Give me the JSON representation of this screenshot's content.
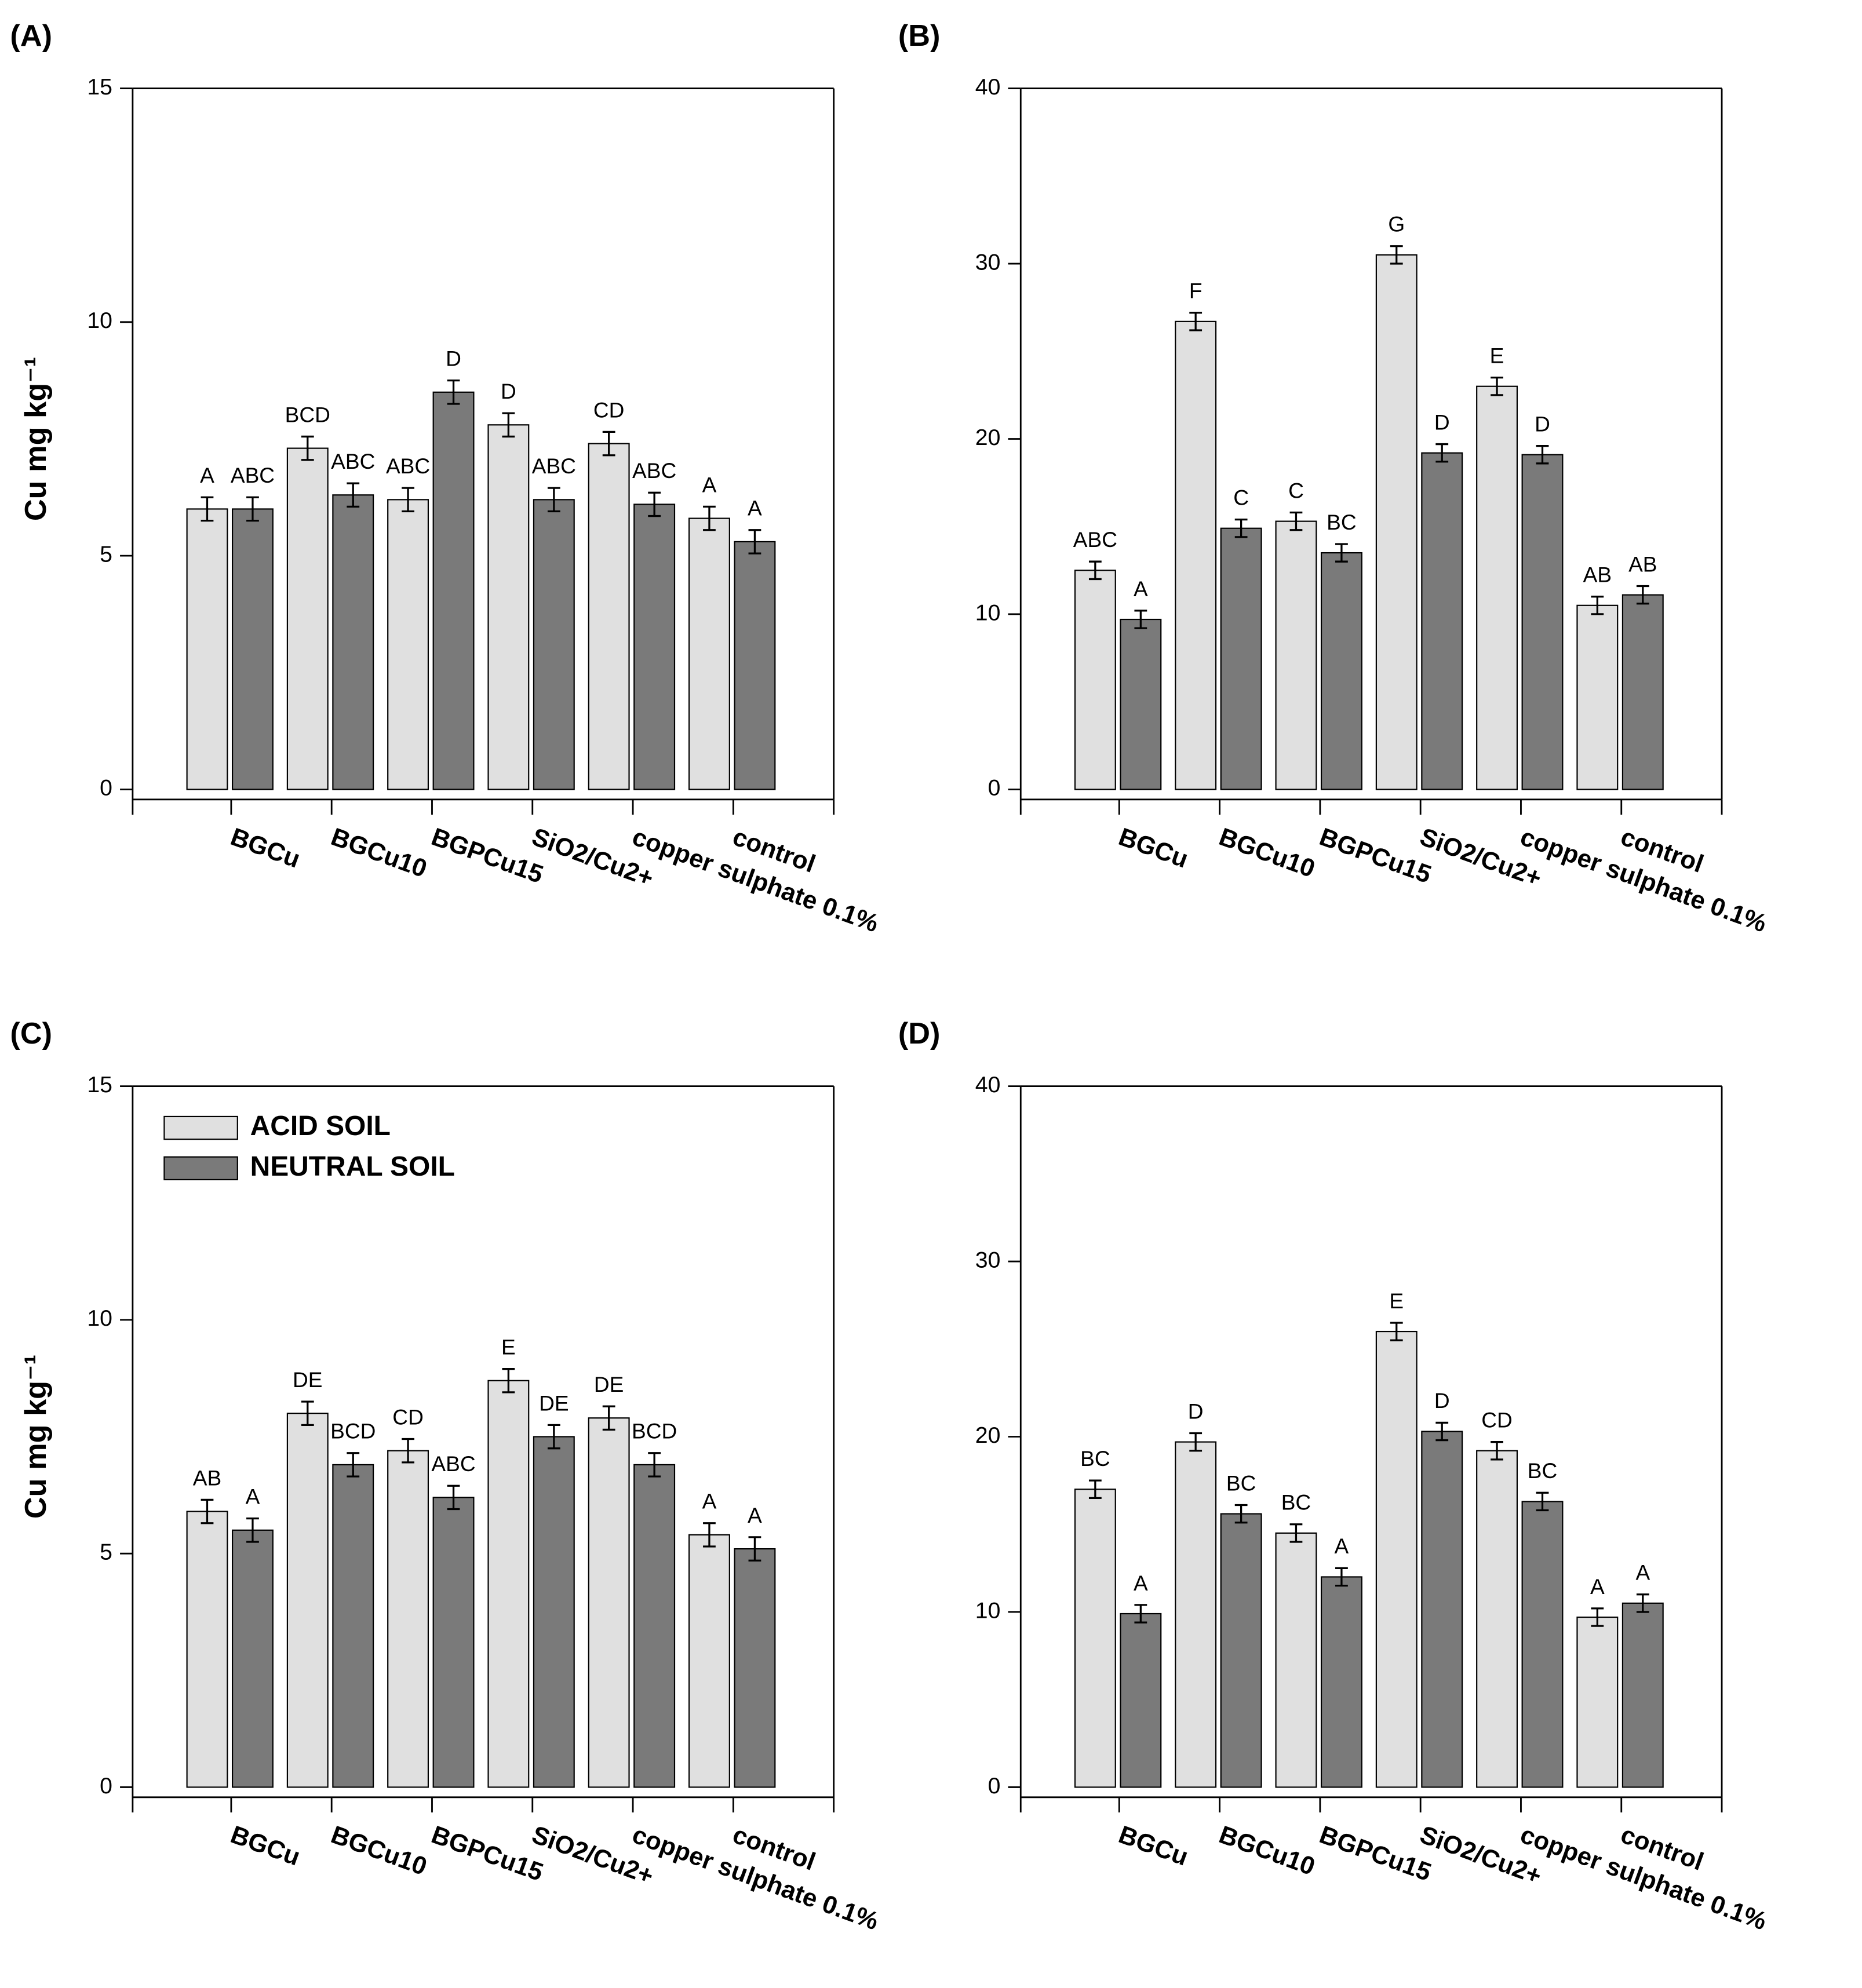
{
  "chart_data": [
    {
      "type": "bar",
      "panel_label": "(A)",
      "y_label": "Cu mg kg⁻¹",
      "categories": [
        "BGCu",
        "BGCu10",
        "BGPCu15",
        "SiO2/Cu2+",
        "copper sulphate 0.1%",
        "control"
      ],
      "ylim": [
        0,
        15
      ],
      "yticks": [
        0,
        5,
        10,
        15
      ],
      "series": [
        {
          "color": "#e0e0e0",
          "values": [
            6.0,
            7.3,
            6.2,
            7.8,
            7.4,
            5.8
          ],
          "errors": [
            0.25,
            0.25,
            0.25,
            0.25,
            0.25,
            0.25
          ],
          "letters": [
            "A",
            "BCD",
            "ABC",
            "D",
            "CD",
            "A"
          ]
        },
        {
          "color": "#7a7a7a",
          "values": [
            6.0,
            6.3,
            8.5,
            6.2,
            6.1,
            5.3
          ],
          "errors": [
            0.25,
            0.25,
            0.25,
            0.25,
            0.25,
            0.25
          ],
          "letters": [
            "ABC",
            "ABC",
            "D",
            "ABC",
            "ABC",
            "A"
          ]
        }
      ]
    },
    {
      "type": "bar",
      "panel_label": "(B)",
      "categories": [
        "BGCu",
        "BGCu10",
        "BGPCu15",
        "SiO2/Cu2+",
        "copper sulphate 0.1%",
        "control"
      ],
      "ylim": [
        0,
        40
      ],
      "yticks": [
        0,
        10,
        20,
        30,
        40
      ],
      "series": [
        {
          "color": "#e0e0e0",
          "values": [
            12.5,
            26.7,
            15.3,
            30.5,
            23.0,
            10.5
          ],
          "errors": [
            0.5,
            0.5,
            0.5,
            0.5,
            0.5,
            0.5
          ],
          "letters": [
            "ABC",
            "F",
            "C",
            "G",
            "E",
            "AB"
          ]
        },
        {
          "color": "#7a7a7a",
          "values": [
            9.7,
            14.9,
            13.5,
            19.2,
            19.1,
            11.1
          ],
          "errors": [
            0.5,
            0.5,
            0.5,
            0.5,
            0.5,
            0.5
          ],
          "letters": [
            "A",
            "C",
            "BC",
            "D",
            "D",
            "AB"
          ]
        }
      ]
    },
    {
      "type": "bar",
      "panel_label": "(C)",
      "y_label": "Cu mg kg⁻¹",
      "categories": [
        "BGCu",
        "BGCu10",
        "BGPCu15",
        "SiO2/Cu2+",
        "copper sulphate 0.1%",
        "control"
      ],
      "ylim": [
        0,
        15
      ],
      "yticks": [
        0,
        5,
        10,
        15
      ],
      "series": [
        {
          "name": "ACID SOIL",
          "color": "#e0e0e0",
          "values": [
            5.9,
            8.0,
            7.2,
            8.7,
            7.9,
            5.4
          ],
          "errors": [
            0.25,
            0.25,
            0.25,
            0.25,
            0.25,
            0.25
          ],
          "letters": [
            "AB",
            "DE",
            "CD",
            "E",
            "DE",
            "A"
          ]
        },
        {
          "name": "NEUTRAL SOIL",
          "color": "#7a7a7a",
          "values": [
            5.5,
            6.9,
            6.2,
            7.5,
            6.9,
            5.1
          ],
          "errors": [
            0.25,
            0.25,
            0.25,
            0.25,
            0.25,
            0.25
          ],
          "letters": [
            "A",
            "BCD",
            "ABC",
            "DE",
            "BCD",
            "A"
          ]
        }
      ]
    },
    {
      "type": "bar",
      "panel_label": "(D)",
      "categories": [
        "BGCu",
        "BGCu10",
        "BGPCu15",
        "SiO2/Cu2+",
        "copper sulphate 0.1%",
        "control"
      ],
      "ylim": [
        0,
        40
      ],
      "yticks": [
        0,
        10,
        20,
        30,
        40
      ],
      "series": [
        {
          "color": "#e0e0e0",
          "values": [
            17.0,
            19.7,
            14.5,
            26.0,
            19.2,
            9.7
          ],
          "errors": [
            0.5,
            0.5,
            0.5,
            0.5,
            0.5,
            0.5
          ],
          "letters": [
            "BC",
            "D",
            "BC",
            "E",
            "CD",
            "A"
          ]
        },
        {
          "color": "#7a7a7a",
          "values": [
            9.9,
            15.6,
            12.0,
            20.3,
            16.3,
            10.5
          ],
          "errors": [
            0.5,
            0.5,
            0.5,
            0.5,
            0.5,
            0.5
          ],
          "letters": [
            "A",
            "BC",
            "A",
            "D",
            "BC",
            "A"
          ]
        }
      ]
    }
  ]
}
